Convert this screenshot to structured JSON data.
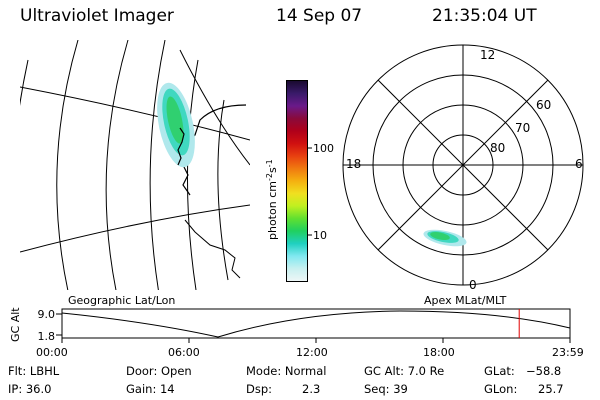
{
  "header": {
    "title": "Ultraviolet Imager",
    "date": "14 Sep 07",
    "time": "21:35:04 UT"
  },
  "colorbar": {
    "units_label": "photon cm",
    "units_exp1": "-2",
    "units_mid": "s",
    "units_exp2": "-1",
    "tick_labels": [
      "100",
      "10"
    ],
    "colors": [
      "#1a0a30",
      "#3a1a6a",
      "#6a1a8a",
      "#8a0a3a",
      "#b0001a",
      "#d01010",
      "#e84010",
      "#f07a10",
      "#f5b010",
      "#f0e020",
      "#c0f020",
      "#60e030",
      "#20d060",
      "#20d0c0",
      "#80e8f0",
      "#c8f0f0",
      "#eef6f6"
    ]
  },
  "polar_plot": {
    "mlt_labels": {
      "top": "12",
      "left": "18",
      "right": "6",
      "bottom": "0"
    },
    "lat_labels": [
      "60",
      "70",
      "80"
    ]
  },
  "timeline": {
    "y_axis_label": "GC Alt",
    "y_ticks": [
      "9.0",
      "1.8"
    ],
    "left_title": "Geographic Lat/Lon",
    "right_title": "Apex MLat/MLT",
    "x_ticks": [
      "00:00",
      "06:00",
      "12:00",
      "18:00",
      "23:59"
    ],
    "current_time_fraction": 0.9
  },
  "status": {
    "flt": "Flt: LBHL",
    "ip": "IP: 36.0",
    "door": "Door: Open",
    "gain": "Gain: 14",
    "mode": "Mode: Normal",
    "dsp_label": "Dsp:",
    "dsp_value": "2.3",
    "gc_alt": "GC Alt: 7.0 Re",
    "seq": "Seq: 39",
    "glat_label": "GLat:",
    "glat_value": "−58.8",
    "glon_label": "GLon:",
    "glon_value": "25.7"
  },
  "colors": {
    "emission_core": "#30d070",
    "emission_mid": "#40d8c0",
    "emission_edge": "#b0e8ec",
    "time_marker": "#e00000"
  }
}
